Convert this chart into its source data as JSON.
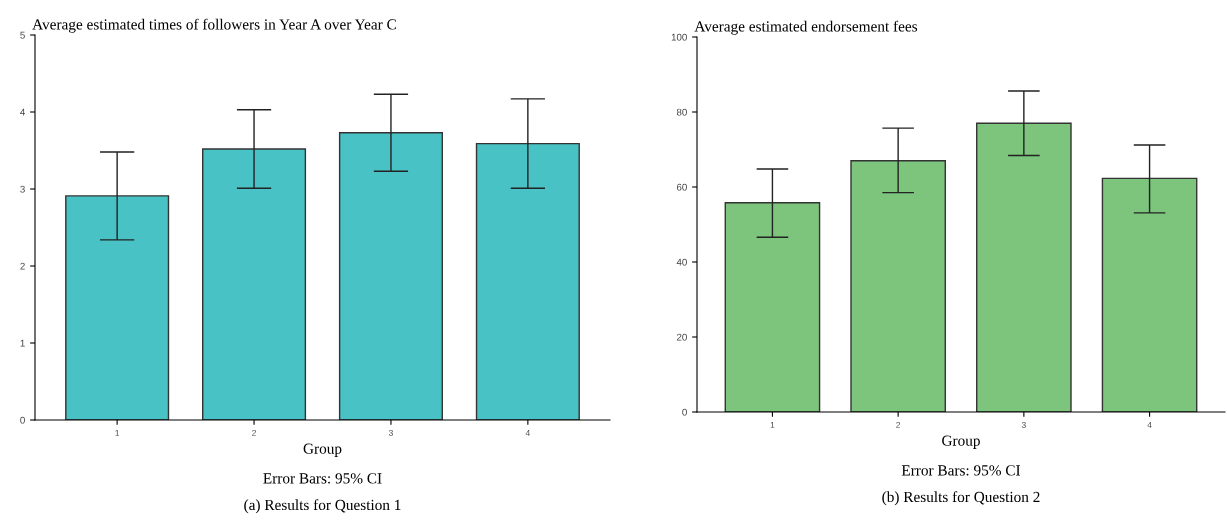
{
  "chart_data": [
    {
      "type": "bar",
      "title": "Average estimated times of followers in Year A over Year C",
      "xlabel": "Group",
      "categories": [
        "1",
        "2",
        "3",
        "4"
      ],
      "values": [
        2.91,
        3.52,
        3.73,
        3.59
      ],
      "errors": [
        [
          2.34,
          3.48
        ],
        [
          3.01,
          4.03
        ],
        [
          3.23,
          4.23
        ],
        [
          3.01,
          4.17
        ]
      ],
      "color": "#48c2c5",
      "ylim": [
        0,
        5
      ],
      "yticks": [
        0,
        1,
        2,
        3,
        4,
        5
      ],
      "grid": false,
      "legend": false,
      "annotations": [
        "Error Bars: 95% CI",
        "(a) Results for Question 1"
      ]
    },
    {
      "type": "bar",
      "title": "Average estimated endorsement fees",
      "xlabel": "Group",
      "categories": [
        "1",
        "2",
        "3",
        "4"
      ],
      "values": [
        55.8,
        67.0,
        77.0,
        62.3
      ],
      "errors": [
        [
          46.6,
          64.8
        ],
        [
          58.5,
          75.7
        ],
        [
          68.4,
          85.6
        ],
        [
          53.1,
          71.2
        ]
      ],
      "color": "#7dc47d",
      "ylim": [
        0,
        100
      ],
      "yticks": [
        0,
        20,
        40,
        60,
        80,
        100
      ],
      "grid": false,
      "legend": false,
      "annotations": [
        "Error Bars: 95% CI",
        "(b) Results for Question 2"
      ]
    }
  ]
}
